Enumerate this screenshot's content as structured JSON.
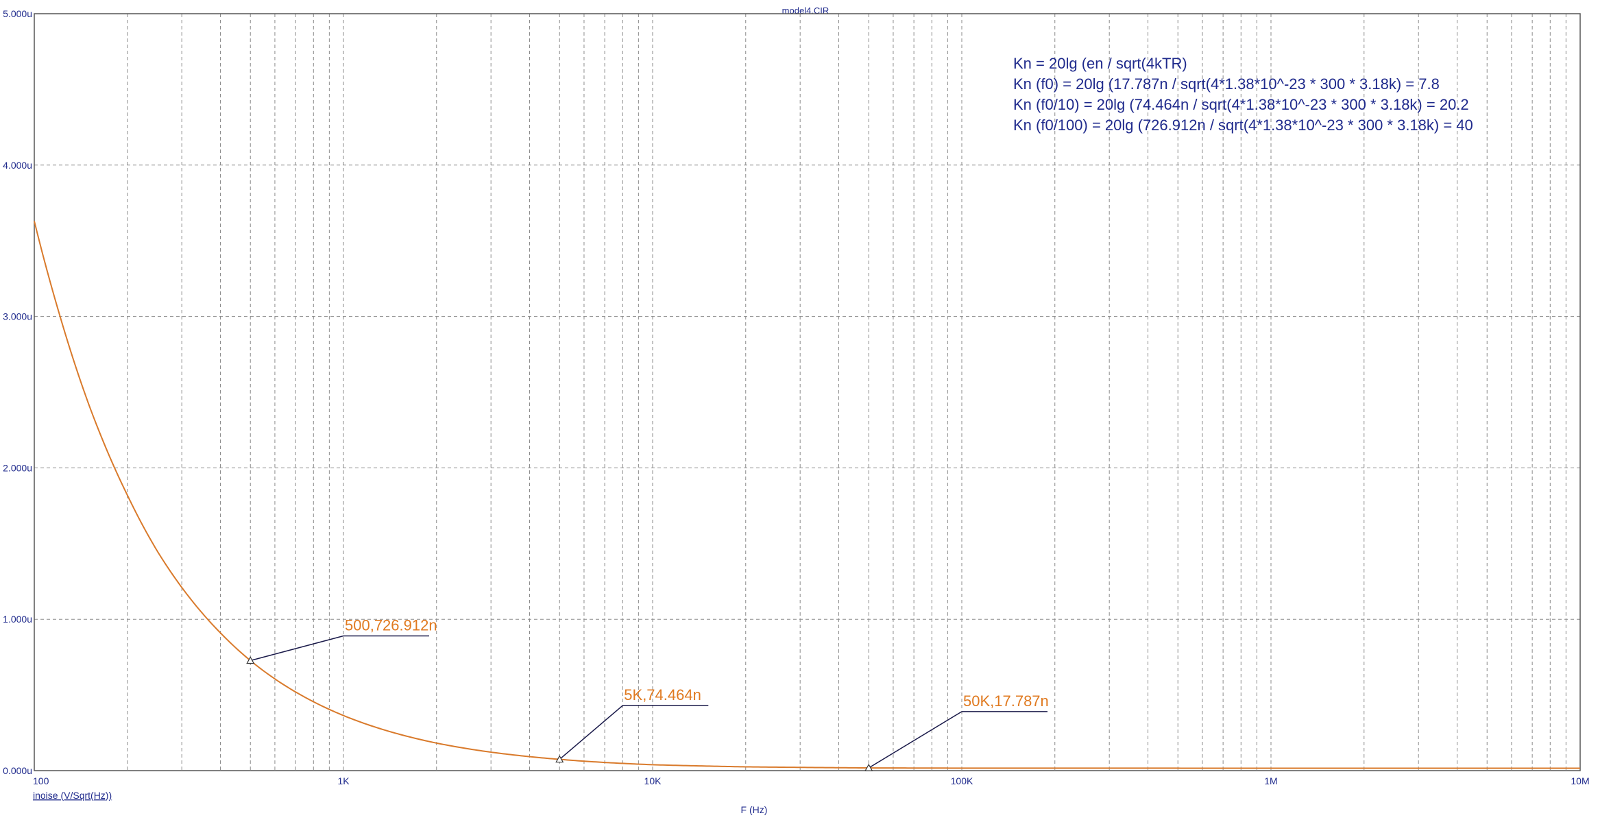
{
  "window_title": "model4.CIR",
  "x_axis_title": "F (Hz)",
  "trace_label": "inoise (V/Sqrt(Hz))",
  "colors": {
    "trace": "#d97a2b",
    "grid": "#8a8a8a",
    "frame": "#555555",
    "text": "#1f2a8c",
    "marker_text": "#e07a20",
    "leader": "#1a1a4a"
  },
  "annotations": [
    "Kn = 20lg (en / sqrt(4kTR)",
    "Kn (f0) = 20lg (17.787n / sqrt(4*1.38*10^-23 * 300 * 3.18k) = 7.8",
    "Kn (f0/10) = 20lg (74.464n / sqrt(4*1.38*10^-23 * 300 * 3.18k) = 20.2",
    "Kn (f0/100) = 20lg (726.912n / sqrt(4*1.38*10^-23 * 300 * 3.18k) = 40"
  ],
  "chart_data": {
    "type": "line",
    "title": "model4.CIR",
    "xlabel": "F (Hz)",
    "ylabel": "",
    "x_scale": "log",
    "xlim": [
      100,
      10000000
    ],
    "ylim": [
      0,
      5e-06
    ],
    "grid": true,
    "x_ticks": [
      {
        "value": 100,
        "label": "100"
      },
      {
        "value": 1000,
        "label": "1K"
      },
      {
        "value": 10000,
        "label": "10K"
      },
      {
        "value": 100000,
        "label": "100K"
      },
      {
        "value": 1000000,
        "label": "1M"
      },
      {
        "value": 10000000,
        "label": "10M"
      }
    ],
    "y_ticks": [
      {
        "value": 0,
        "label": "0.000u"
      },
      {
        "value": 1e-06,
        "label": "1.000u"
      },
      {
        "value": 2e-06,
        "label": "2.000u"
      },
      {
        "value": 3e-06,
        "label": "3.000u"
      },
      {
        "value": 4e-06,
        "label": "4.000u"
      },
      {
        "value": 5e-06,
        "label": "5.000u"
      }
    ],
    "series": [
      {
        "name": "inoise (V/Sqrt(Hz))",
        "x": [
          100,
          120,
          150,
          200,
          250,
          300,
          400,
          500,
          600,
          800,
          1000,
          1500,
          2000,
          3000,
          5000,
          7000,
          10000,
          20000,
          50000,
          100000,
          1000000,
          10000000
        ],
        "y": [
          3.63e-06,
          3.03e-06,
          2.42e-06,
          1.82e-06,
          1.45e-06,
          1.21e-06,
          9.1e-07,
          7.27e-07,
          6.06e-07,
          4.55e-07,
          3.64e-07,
          2.43e-07,
          1.82e-07,
          1.22e-07,
          7.45e-08,
          5.4e-08,
          3.9e-08,
          2.5e-08,
          1.78e-08,
          1.65e-08,
          1.6e-08,
          1.6e-08
        ]
      }
    ],
    "markers": [
      {
        "x": 500,
        "y": 7.26912e-07,
        "label": "500,726.912n",
        "label_x": 1000,
        "label_y": 8.9e-07
      },
      {
        "x": 5000,
        "y": 7.4464e-08,
        "label": "5K,74.464n",
        "label_x": 8000,
        "label_y": 4.3e-07
      },
      {
        "x": 50000,
        "y": 1.7787e-08,
        "label": "50K,17.787n",
        "label_x": 100000,
        "label_y": 3.9e-07
      }
    ]
  }
}
